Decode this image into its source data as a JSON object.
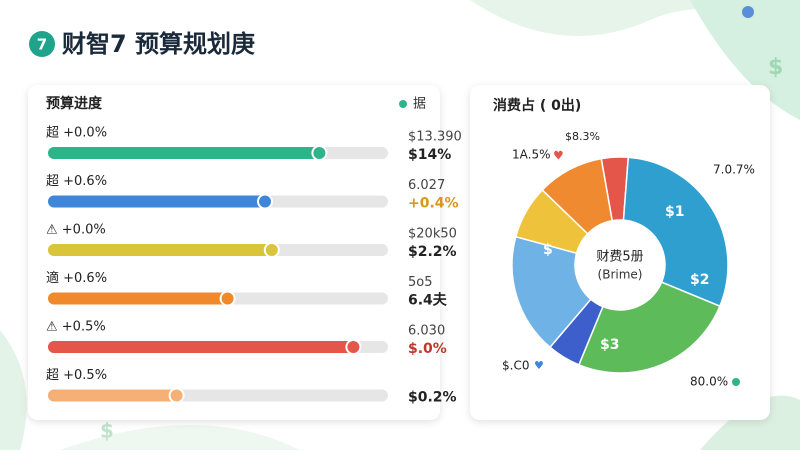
{
  "header": {
    "badge": "7",
    "title": "财智7 预算规划庚"
  },
  "progress_panel": {
    "title": "预算进度",
    "legend": "据",
    "rows": [
      {
        "label": "超 +0.0%",
        "amount": "$13.390",
        "percent": "$14%",
        "progress": 81,
        "color": "#2fb48a",
        "percent_color": "#222"
      },
      {
        "label": "超 +0.6%",
        "amount": "6.027",
        "percent": "+0.4%",
        "progress": 65,
        "color": "#3f86d8",
        "percent_color": "#d9961a"
      },
      {
        "label": "⚠ +0.0%",
        "amount": "$20k50",
        "percent": "$2.2%",
        "progress": 67,
        "color": "#d9c43a",
        "percent_color": "#222"
      },
      {
        "label": "適 +0.6%",
        "amount": "5o5",
        "percent": "6.4夫",
        "progress": 54,
        "color": "#ef8a2c",
        "percent_color": "#222"
      },
      {
        "label": "⚠ +0.5%",
        "amount": "6.030",
        "percent": "$.0%",
        "progress": 91,
        "color": "#e4554a",
        "percent_color": "#c0392b"
      },
      {
        "label": "超 +0.5%",
        "percent": "$0.2%",
        "progress": 39,
        "color": "#f5b077",
        "percent_color": "#222"
      }
    ]
  },
  "donut_panel": {
    "title": "消费占 ( 0出)",
    "center_title": "财费5册",
    "center_subtitle": "(Brime)",
    "segments": [
      {
        "value": 4,
        "color": "#e4554a"
      },
      {
        "value": 30,
        "color": "#2f9fd0"
      },
      {
        "value": 25,
        "color": "#5dbb5a"
      },
      {
        "value": 5,
        "color": "#3c5fcc"
      },
      {
        "value": 18,
        "color": "#6fb2e6"
      },
      {
        "value": 8,
        "color": "#efc23c"
      },
      {
        "value": 10,
        "color": "#f08a30"
      }
    ],
    "labels": [
      "$8.3%",
      "1A.5%",
      "7.0.7%",
      "$1",
      "$2",
      "$3",
      "$",
      "$.C0",
      "80.0%"
    ]
  }
}
